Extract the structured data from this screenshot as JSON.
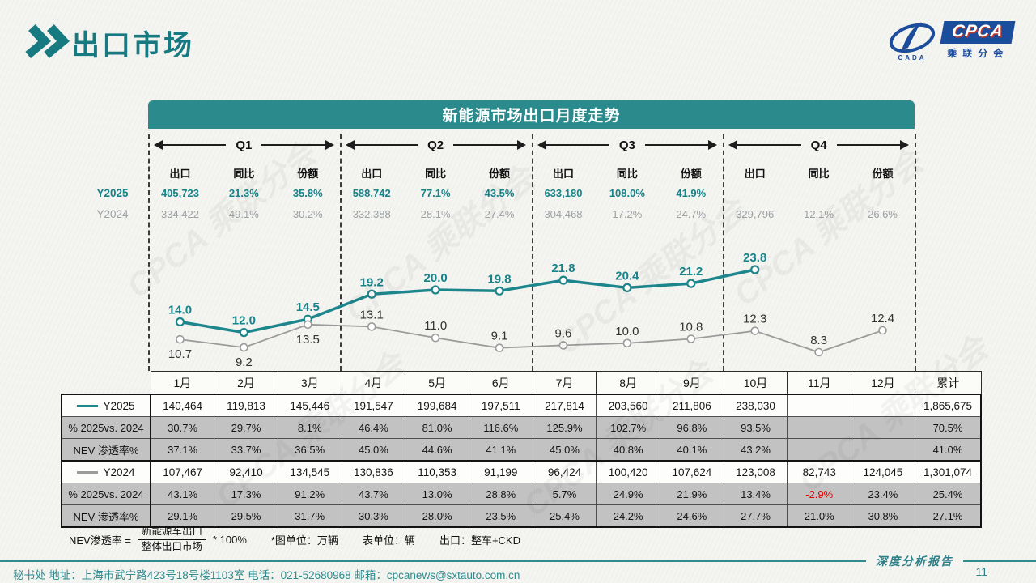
{
  "header": {
    "title": "出口市场"
  },
  "logo": {
    "box_text": "CPCA",
    "subtitle": "乘联分会",
    "mark_text": "CADA"
  },
  "panel": {
    "title": "新能源市场出口月度走势",
    "stat_headers": [
      "出口",
      "同比",
      "份额"
    ],
    "series_labels": {
      "y2025": "Y2025",
      "y2024": "Y2024"
    },
    "quarters": [
      {
        "label": "Q1",
        "y2025": [
          "405,723",
          "21.3%",
          "35.8%"
        ],
        "y2024": [
          "334,422",
          "49.1%",
          "30.2%"
        ]
      },
      {
        "label": "Q2",
        "y2025": [
          "588,742",
          "77.1%",
          "43.5%"
        ],
        "y2024": [
          "332,388",
          "28.1%",
          "27.4%"
        ]
      },
      {
        "label": "Q3",
        "y2025": [
          "633,180",
          "108.0%",
          "41.9%"
        ],
        "y2024": [
          "304,468",
          "17.2%",
          "24.7%"
        ]
      },
      {
        "label": "Q4",
        "y2025": [
          "",
          "",
          ""
        ],
        "y2024": [
          "329,796",
          "12.1%",
          "26.6%"
        ]
      }
    ]
  },
  "chart_data": {
    "type": "line",
    "title": "新能源市场出口月度走势",
    "x": [
      "1月",
      "2月",
      "3月",
      "4月",
      "5月",
      "6月",
      "7月",
      "8月",
      "9月",
      "10月",
      "11月",
      "12月"
    ],
    "series": [
      {
        "name": "Y2025",
        "color": "#1d868d",
        "values": [
          14.0,
          12.0,
          14.5,
          19.2,
          20.0,
          19.8,
          21.8,
          20.4,
          21.2,
          23.8,
          null,
          null
        ],
        "label_side": [
          "above",
          "above",
          "above",
          "above",
          "above",
          "above",
          "above",
          "above",
          "above",
          "above",
          null,
          null
        ]
      },
      {
        "name": "Y2024",
        "color": "#9b9b9b",
        "values": [
          10.7,
          9.2,
          13.5,
          13.1,
          11.0,
          9.1,
          9.6,
          10.0,
          10.8,
          12.3,
          8.3,
          12.4
        ],
        "label_side": [
          "below",
          "below",
          "below",
          "above",
          "above",
          "above",
          "above",
          "above",
          "above",
          "above",
          "above",
          "above"
        ]
      }
    ],
    "ylim": [
      7,
      26
    ],
    "grid": false,
    "legend_position": "table-row-labels",
    "unit_note": "图单位：万辆"
  },
  "table": {
    "columns": [
      "1月",
      "2月",
      "3月",
      "4月",
      "5月",
      "6月",
      "7月",
      "8月",
      "9月",
      "10月",
      "11月",
      "12月",
      "累计"
    ],
    "rows": [
      {
        "label": "Y2025",
        "swatch": "#1d868d",
        "bg": "white",
        "cells": [
          "140,464",
          "119,813",
          "145,446",
          "191,547",
          "199,684",
          "197,511",
          "217,814",
          "203,560",
          "211,806",
          "238,030",
          "",
          "",
          "1,865,675"
        ]
      },
      {
        "label": "% 2025vs. 2024",
        "bg": "gray",
        "cells": [
          "30.7%",
          "29.7%",
          "8.1%",
          "46.4%",
          "81.0%",
          "116.6%",
          "125.9%",
          "102.7%",
          "96.8%",
          "93.5%",
          "",
          "",
          "70.5%"
        ]
      },
      {
        "label": "NEV 渗透率%",
        "bg": "gray",
        "cells": [
          "37.1%",
          "33.7%",
          "36.5%",
          "45.0%",
          "44.6%",
          "41.1%",
          "45.0%",
          "40.8%",
          "40.1%",
          "43.2%",
          "",
          "",
          "41.0%"
        ]
      },
      {
        "label": "Y2024",
        "swatch": "#9b9b9b",
        "bg": "white",
        "cells": [
          "107,467",
          "92,410",
          "134,545",
          "130,836",
          "110,353",
          "91,199",
          "96,424",
          "100,420",
          "107,624",
          "123,008",
          "82,743",
          "124,045",
          "1,301,074"
        ]
      },
      {
        "label": "% 2025vs. 2024",
        "bg": "gray",
        "red_cells": [
          10
        ],
        "cells": [
          "43.1%",
          "17.3%",
          "91.2%",
          "43.7%",
          "13.0%",
          "28.8%",
          "5.7%",
          "24.9%",
          "21.9%",
          "13.4%",
          "-2.9%",
          "23.4%",
          "25.4%"
        ]
      },
      {
        "label": "NEV 渗透率%",
        "bg": "gray",
        "cells": [
          "29.1%",
          "29.5%",
          "31.7%",
          "30.3%",
          "28.0%",
          "23.5%",
          "25.4%",
          "24.2%",
          "24.6%",
          "27.7%",
          "21.0%",
          "30.8%",
          "27.1%"
        ]
      }
    ]
  },
  "footnote": {
    "lhs": "NEV渗透率 =",
    "numerator": "新能源车出口",
    "denominator": "整体出口市场",
    "rhs": "* 100%",
    "notes": [
      "*图单位：万辆",
      "表单位：辆",
      "出口：整车+CKD"
    ]
  },
  "footer": {
    "left": "秘书处   地址：上海市武宁路423号18号楼1103室  电话：021-52680968   邮箱：cpcanews@sxtauto.com.cn",
    "report": "深度分析报告",
    "page": "11"
  },
  "watermark_text": "CPCA 乘联分会"
}
